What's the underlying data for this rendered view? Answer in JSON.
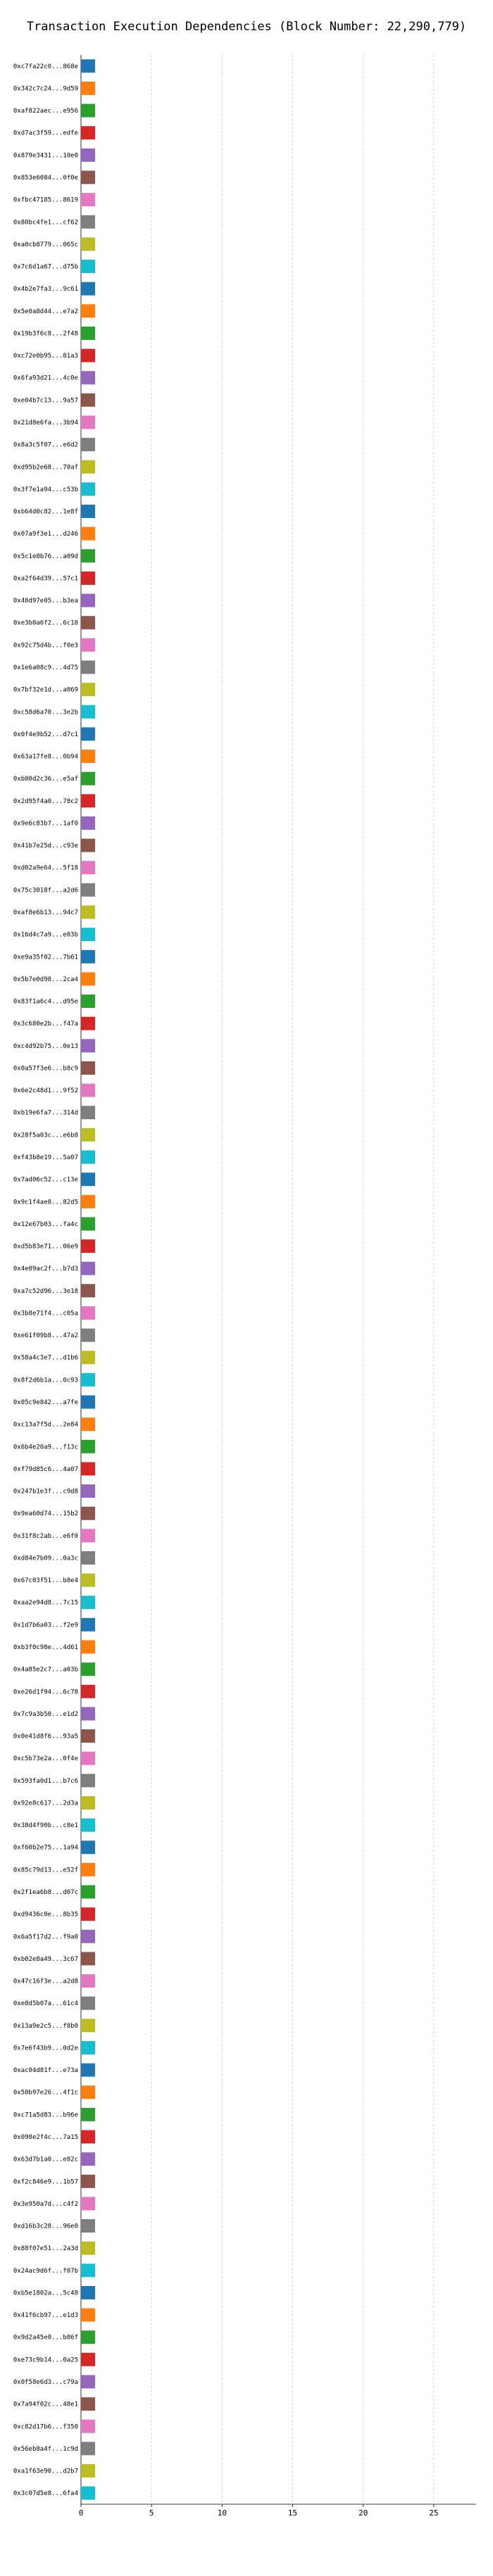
{
  "chart_data": {
    "type": "bar",
    "orientation": "horizontal",
    "title": "Transaction Execution Dependencies (Block Number: 22,290,779)",
    "xlim": [
      0,
      28
    ],
    "xticks": [
      0,
      5,
      10,
      15,
      20,
      25
    ],
    "grid": true,
    "legend": "none",
    "palette": [
      "#1f77b4",
      "#ff7f0e",
      "#2ca02c",
      "#d62728",
      "#9467bd",
      "#8c564b",
      "#e377c2",
      "#7f7f7f",
      "#bcbd22",
      "#17becf"
    ],
    "rows": [
      [
        "0xc7fa22c0...868e",
        0
      ],
      [
        "0x342c7c24...9d59",
        0
      ],
      [
        "0xaf822aec...e956",
        0
      ],
      [
        "0xd7ac3f59...edfe",
        0
      ],
      [
        "0x879e3431...10e0",
        0
      ],
      [
        "0x853e6084...0f0e",
        0
      ],
      [
        "0xfbc47185...8619",
        0
      ],
      [
        "0x80bc4fe1...cf62",
        0
      ],
      [
        "0xa0cb8779...065c",
        0
      ],
      [
        "0x7c6d1a67...d75b",
        0
      ],
      [
        "0x4b2e7fa3...9c61",
        0
      ],
      [
        "0x5e0a8d44...e7a2",
        0
      ],
      [
        "0x19b3f6c8...2f48",
        0
      ],
      [
        "0xc72e0b95...81a3",
        0
      ],
      [
        "0x6fa93d21...4c0e",
        0
      ],
      [
        "0xe04b7c13...9a57",
        0
      ],
      [
        "0x21d8e6fa...3b94",
        0
      ],
      [
        "0x8a3c5f07...e6d2",
        0
      ],
      [
        "0xd95b2e68...70af",
        0
      ],
      [
        "0x3f7e1a94...c53b",
        0
      ],
      [
        "0xb64d0c82...1e8f",
        0
      ],
      [
        "0x07a9f3e1...d246",
        0
      ],
      [
        "0x5c1e8b76...a09d",
        0
      ],
      [
        "0xa2f64d39...57c1",
        0
      ],
      [
        "0x48d97e05...b3ea",
        0
      ],
      [
        "0xe3b0a6f2...6c18",
        0
      ],
      [
        "0x92c75d4b...f0e3",
        0
      ],
      [
        "0x1e6a08c9...4d75",
        0
      ],
      [
        "0x7bf32e1d...a869",
        0
      ],
      [
        "0xc58d6a70...3e2b",
        0
      ],
      [
        "0x0f4e9b52...d7c1",
        0
      ],
      [
        "0x63a17fe8...0b94",
        0
      ],
      [
        "0xb80d2c36...e5af",
        0
      ],
      [
        "0x2d95f4a0...78c2",
        0
      ],
      [
        "0x9e6c83b7...1af0",
        0
      ],
      [
        "0x41b7e25d...c93e",
        0
      ],
      [
        "0xd02a9e64...5f18",
        0
      ],
      [
        "0x75c3018f...a2d6",
        0
      ],
      [
        "0xaf8e6b13...94c7",
        0
      ],
      [
        "0x16d4c7a9...e03b",
        0
      ],
      [
        "0xe9a35f02...7b61",
        0
      ],
      [
        "0x5b7e0d98...2ca4",
        0
      ],
      [
        "0x83f1a6c4...d95e",
        0
      ],
      [
        "0x3c680e2b...f47a",
        0
      ],
      [
        "0xc4d92b75...0e13",
        0
      ],
      [
        "0x0a57f3e6...b8c9",
        0
      ],
      [
        "0x6e2c48d1...9f52",
        0
      ],
      [
        "0xb19e6fa7...314d",
        0
      ],
      [
        "0x28f5a03c...e6b8",
        0
      ],
      [
        "0xf43b8e19...5a07",
        0
      ],
      [
        "0x7ad06c52...c13e",
        0
      ],
      [
        "0x9c1f4ae8...82d5",
        0
      ],
      [
        "0x12e67b03...fa4c",
        0
      ],
      [
        "0xd5b83e71...06e9",
        0
      ],
      [
        "0x4e09ac2f...b7d3",
        0
      ],
      [
        "0xa7c52d96...3e18",
        0
      ],
      [
        "0x3b8e71f4...c05a",
        0
      ],
      [
        "0xe61f09b8...47a2",
        0
      ],
      [
        "0x58a4c3e7...d1b6",
        0
      ],
      [
        "0x8f2d6b1a...0c93",
        0
      ],
      [
        "0x05c9e842...a7fe",
        0
      ],
      [
        "0xc13a7f5d...2e84",
        0
      ],
      [
        "0x6b4e20a9...f13c",
        0
      ],
      [
        "0xf79d85c6...4a07",
        0
      ],
      [
        "0x247b1e3f...c9d8",
        0
      ],
      [
        "0x9ea60d74...15b2",
        0
      ],
      [
        "0x31f8c2ab...e6f0",
        0
      ],
      [
        "0xd84e7b09...0a3c",
        0
      ],
      [
        "0x67c03f51...b8e4",
        0
      ],
      [
        "0xaa2e94d8...7c15",
        0
      ],
      [
        "0x1d7b6a03...f2e9",
        0
      ],
      [
        "0xb3f0c98e...4d61",
        0
      ],
      [
        "0x4a85e2c7...a03b",
        0
      ],
      [
        "0xe26d1f94...6c78",
        0
      ],
      [
        "0x7c9a3b50...e1d2",
        0
      ],
      [
        "0x0e41d8f6...93a5",
        0
      ],
      [
        "0xc5b73e2a...0f4e",
        0
      ],
      [
        "0x593fa0d1...b7c6",
        0
      ],
      [
        "0x92e8c617...2d3a",
        0
      ],
      [
        "0x38d4f90b...c8e1",
        0
      ],
      [
        "0xf60b2e75...1a94",
        0
      ],
      [
        "0x85c79d13...e52f",
        0
      ],
      [
        "0x2f1ea6b8...d07c",
        0
      ],
      [
        "0xd9436c0e...8b35",
        0
      ],
      [
        "0x6a5f17d2...f9a0",
        0
      ],
      [
        "0xb02e8a49...3c67",
        0
      ],
      [
        "0x47c16f3e...a2d8",
        0
      ],
      [
        "0xe8d5b07a...61c4",
        0
      ],
      [
        "0x13a9e2c5...f8b0",
        0
      ],
      [
        "0x7e6f43b9...0d2e",
        0
      ],
      [
        "0xac04d81f...e73a",
        0
      ],
      [
        "0x50b97e26...4f1c",
        0
      ],
      [
        "0xc71a5d83...b96e",
        0
      ],
      [
        "0x098e2f4c...7a15",
        0
      ],
      [
        "0x63d7b1a0...e82c",
        0
      ],
      [
        "0xf2c846e9...1b57",
        0
      ],
      [
        "0x3e950a7d...c4f2",
        0
      ],
      [
        "0xd16b3c28...96e0",
        0
      ],
      [
        "0x88f07e51...2a3d",
        0
      ],
      [
        "0x24ac9d6f...f07b",
        0
      ],
      [
        "0xb5e1802a...5c48",
        0
      ],
      [
        "0x41f6cb97...e1d3",
        0
      ],
      [
        "0x9d2a45e0...b86f",
        0
      ],
      [
        "0xe73c9b14...0a25",
        0
      ],
      [
        "0x0f58e6d3...c79a",
        0
      ],
      [
        "0x7a94f02c...48e1",
        0
      ],
      [
        "0xc82d17b6...f350",
        0
      ],
      [
        "0x56eb8a4f...1c9d",
        0
      ],
      [
        "0xa1f63e90...d2b7",
        0
      ],
      [
        "0x3c07d5e8...6fa4",
        0
      ]
    ],
    "row_count_note": ""
  }
}
